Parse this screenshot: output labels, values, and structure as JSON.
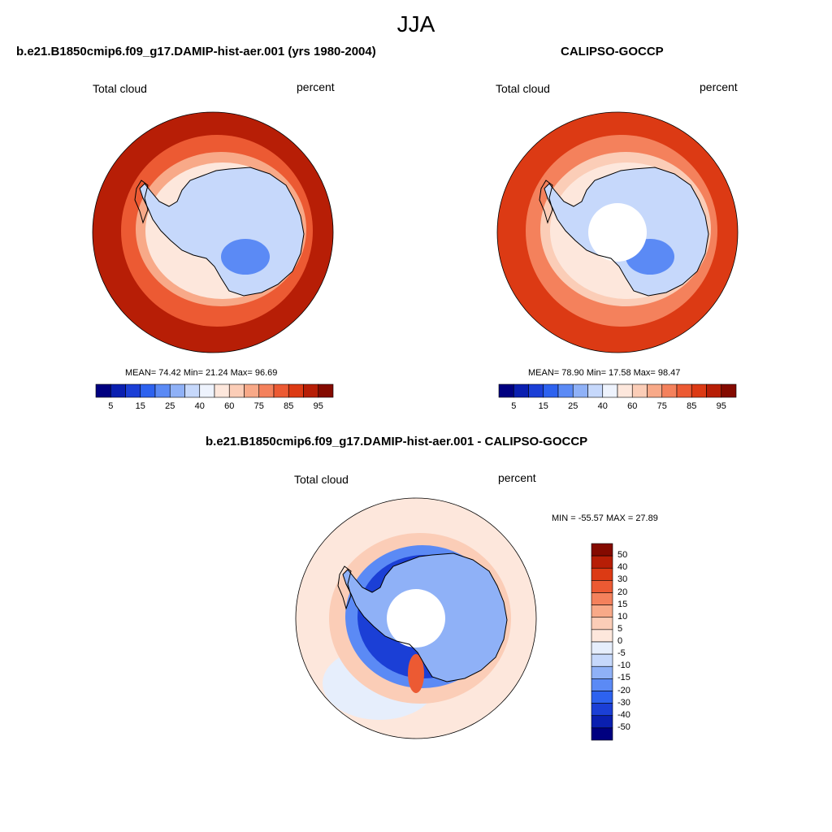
{
  "title": "JJA",
  "colors": {
    "land_outline": "#000000",
    "abs_scale": [
      "#000080",
      "#0a1fb0",
      "#1b3fd6",
      "#2d62ef",
      "#5b8af5",
      "#8fb1f7",
      "#c6d8fb",
      "#eef3fd",
      "#fde7dc",
      "#fbcdb7",
      "#f8a988",
      "#f4815c",
      "#ec5a33",
      "#dc3a14",
      "#b71e06",
      "#840a00"
    ],
    "diff_scale": [
      "#000080",
      "#0a1fb0",
      "#1b3fd6",
      "#2d62ef",
      "#5b8af5",
      "#8fb1f7",
      "#c6d8fb",
      "#e6eefc",
      "#fde7dc",
      "#fbcdb7",
      "#f8a988",
      "#f4815c",
      "#ec5a33",
      "#dc3a14",
      "#b71e06",
      "#840a00"
    ]
  },
  "panels": [
    {
      "title": "b.e21.B1850cmip6.f09_g17.DAMIP-hist-aer.001 (yrs 1980-2004)",
      "left_label": "Total cloud",
      "right_label": "percent",
      "stats": "MEAN=  74.42  Min=  21.24  Max=  96.69",
      "colorbar_ticks": [
        "5",
        "15",
        "25",
        "40",
        "60",
        "75",
        "85",
        "95"
      ],
      "field_levels": {
        "ocean_far": 14,
        "ocean_mid": 12,
        "ocean_near": 10,
        "coast": 8,
        "interior": 6,
        "low": 4
      }
    },
    {
      "title": "CALIPSO-GOCCP",
      "left_label": "Total cloud",
      "right_label": "percent",
      "stats": "MEAN=  78.90  Min=  17.58  Max=  98.47",
      "colorbar_ticks": [
        "5",
        "15",
        "25",
        "40",
        "60",
        "75",
        "85",
        "95"
      ],
      "field_levels": {
        "ocean_far": 13,
        "ocean_mid": 11,
        "ocean_near": 9,
        "coast": 8,
        "interior": 6,
        "low": 4
      }
    }
  ],
  "difference_panel": {
    "title": "b.e21.B1850cmip6.f09_g17.DAMIP-hist-aer.001 - CALIPSO-GOCCP",
    "left_label": "Total cloud",
    "right_label": "percent",
    "stats": "MIN = -55.57 MAX =  27.89",
    "colorbar_ticks": [
      "50",
      "40",
      "30",
      "20",
      "15",
      "10",
      "5",
      "0",
      "-5",
      "-10",
      "-15",
      "-20",
      "-30",
      "-40",
      "-50"
    ]
  }
}
